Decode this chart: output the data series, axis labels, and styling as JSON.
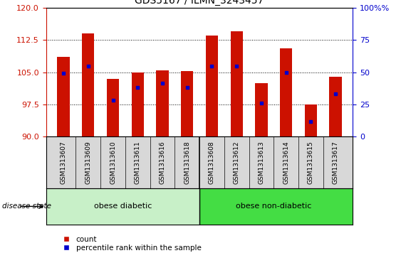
{
  "title": "GDS5167 / ILMN_3243457",
  "samples": [
    "GSM1313607",
    "GSM1313609",
    "GSM1313610",
    "GSM1313611",
    "GSM1313616",
    "GSM1313618",
    "GSM1313608",
    "GSM1313612",
    "GSM1313613",
    "GSM1313614",
    "GSM1313615",
    "GSM1313617"
  ],
  "bar_tops": [
    108.5,
    114.0,
    103.5,
    105.0,
    105.5,
    105.2,
    113.5,
    114.5,
    102.5,
    110.5,
    97.5,
    104.0
  ],
  "percentile_values": [
    104.8,
    106.5,
    98.5,
    101.5,
    102.5,
    101.5,
    106.5,
    106.5,
    97.8,
    105.0,
    93.5,
    100.0
  ],
  "ylim_left": [
    90,
    120
  ],
  "ylim_right": [
    0,
    100
  ],
  "yticks_left": [
    90,
    97.5,
    105,
    112.5,
    120
  ],
  "yticks_right": [
    0,
    25,
    50,
    75,
    100
  ],
  "bar_color": "#cc1100",
  "dot_color": "#0000cc",
  "bar_width": 0.5,
  "group1_label": "obese diabetic",
  "group2_label": "obese non-diabetic",
  "group1_color": "#c8f0c8",
  "group2_color": "#44dd44",
  "disease_state_label": "disease state",
  "legend_count_label": "count",
  "legend_percentile_label": "percentile rank within the sample",
  "left_tick_color": "#cc1100",
  "right_tick_color": "#0000cc",
  "tick_fontsize": 8,
  "title_fontsize": 10,
  "label_bg_color": "#d8d8d8"
}
